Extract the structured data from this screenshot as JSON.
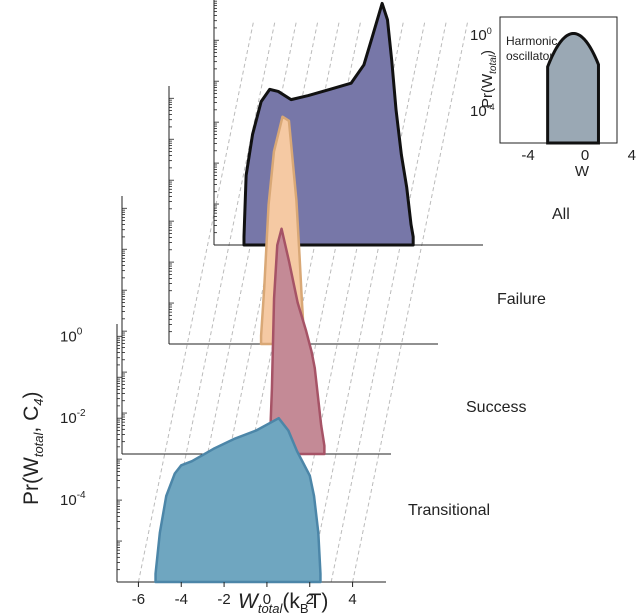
{
  "chart_data": {
    "type": "area",
    "layout": "stacked 3D waterfall of distributions",
    "xlabel_main": "W",
    "xlabel_sub": "total",
    "xlabel_unit_open": "(k",
    "xlabel_unit_sub": "B",
    "xlabel_unit_close": "T)",
    "ylabel_prefix": "Pr(W",
    "ylabel_sub1": "total",
    "ylabel_mid": ", C",
    "ylabel_sub2": "4",
    "ylabel_suffix": ")",
    "x_ticks": [
      "-6",
      "-4",
      "-2",
      "0",
      "2",
      "4"
    ],
    "xlim": [
      -7,
      5
    ],
    "ylog": true,
    "y_tick_labels": [
      {
        "base": "10",
        "exp": "0"
      },
      {
        "base": "10",
        "exp": "-2"
      },
      {
        "base": "10",
        "exp": "-4"
      }
    ],
    "series": [
      {
        "name": "Transitional",
        "color": "#6FA6C0",
        "edge": "#4C86A8",
        "x": [
          -5.2,
          -5.0,
          -4.7,
          -4.3,
          -4.0,
          -3.5,
          -2.5,
          -1.5,
          -0.5,
          0.2,
          0.55,
          1.0,
          1.4,
          1.7,
          2.0,
          2.2,
          2.4,
          2.5
        ],
        "y": [
          -5.8,
          -4.8,
          -3.9,
          -3.35,
          -3.15,
          -3.05,
          -2.75,
          -2.5,
          -2.3,
          -2.1,
          -2.0,
          -2.3,
          -2.8,
          -3.1,
          -3.4,
          -3.9,
          -4.8,
          -5.8
        ]
      },
      {
        "name": "Success",
        "color": "#C48A96",
        "edge": "#A65366",
        "x": [
          -0.1,
          0.0,
          0.1,
          0.25,
          0.45,
          0.8,
          1.2,
          1.6,
          1.85,
          2.0,
          2.15,
          2.3,
          2.45
        ],
        "y": [
          -5.8,
          -4.4,
          -2.2,
          -0.9,
          -0.5,
          -1.3,
          -2.3,
          -3.0,
          -3.5,
          -3.9,
          -4.6,
          -5.3,
          -5.8
        ]
      },
      {
        "name": "Failure",
        "color": "#F5C9A3",
        "edge": "#D9A876",
        "x": [
          -2.7,
          -2.55,
          -2.35,
          -2.1,
          -1.7,
          -1.4,
          -1.05,
          -0.9,
          -0.8,
          -0.7
        ],
        "y": [
          -5.8,
          -4.6,
          -2.6,
          -1.3,
          -0.45,
          -0.55,
          -2.5,
          -3.9,
          -4.9,
          -5.8
        ]
      },
      {
        "name": "All",
        "color": "#7777A8",
        "edge": "#111111",
        "x": [
          -5.6,
          -5.5,
          -5.2,
          -4.8,
          -4.4,
          -4.0,
          -3.4,
          -2.6,
          -1.6,
          -0.6,
          0.0,
          0.4,
          0.85,
          1.1,
          1.3,
          1.5,
          1.75,
          2.0,
          2.2,
          2.3
        ],
        "y": [
          -5.8,
          -4.3,
          -3.3,
          -2.5,
          -2.2,
          -2.25,
          -2.45,
          -2.35,
          -2.2,
          -2.05,
          -1.6,
          -0.9,
          -0.1,
          -0.5,
          -1.5,
          -2.7,
          -3.8,
          -4.6,
          -5.5,
          -5.8
        ]
      }
    ],
    "inset": {
      "title_line1": "Harmonic",
      "title_line2": "oscillator",
      "xlabel": "W",
      "ylabel_prefix": "Pr(W",
      "ylabel_sub": "total",
      "ylabel_suffix": ")",
      "x_ticks": [
        "-4",
        "0",
        "4"
      ],
      "y_tick_labels": [
        {
          "base": "10",
          "exp": "0"
        },
        {
          "base": "10",
          "exp": "-4"
        }
      ],
      "color": "#9AA8B4",
      "edge": "#111111",
      "sigma": 1.0,
      "xlim": [
        -6,
        6
      ]
    }
  }
}
